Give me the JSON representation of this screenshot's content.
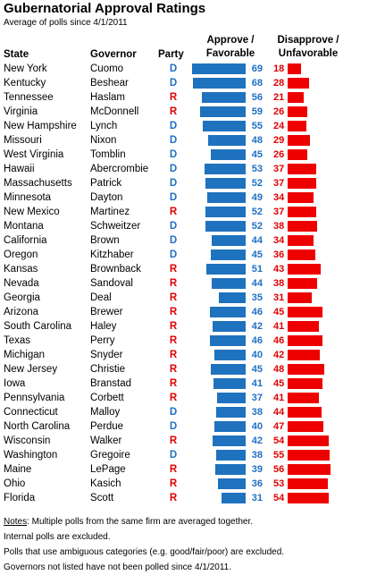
{
  "title": "Gubernatorial Approval Ratings",
  "subtitle": "Average of polls since 4/1/2011",
  "headers": {
    "state": "State",
    "governor": "Governor",
    "party": "Party",
    "approve_line1": "Approve /",
    "approve_line2": "Favorable",
    "disapprove_line1": "Disapprove /",
    "disapprove_line2": "Unfavorable"
  },
  "colors": {
    "democrat": "#1f6fc4",
    "republican": "#e00000",
    "approve_bar": "#1f72bd",
    "disapprove_bar": "#ee0000"
  },
  "chart_data": {
    "type": "bar",
    "title": "Gubernatorial Approval Ratings",
    "subtitle": "Average of polls since 4/1/2011",
    "categories": [
      "New York",
      "Kentucky",
      "Tennessee",
      "Virginia",
      "New Hampshire",
      "Missouri",
      "West Virginia",
      "Hawaii",
      "Massachusetts",
      "Minnesota",
      "New Mexico",
      "Montana",
      "California",
      "Oregon",
      "Kansas",
      "Nevada",
      "Georgia",
      "Arizona",
      "South Carolina",
      "Texas",
      "Michigan",
      "New Jersey",
      "Iowa",
      "Pennsylvania",
      "Connecticut",
      "North Carolina",
      "Wisconsin",
      "Washington",
      "Maine",
      "Ohio",
      "Florida"
    ],
    "governors": [
      "Cuomo",
      "Beshear",
      "Haslam",
      "McDonnell",
      "Lynch",
      "Nixon",
      "Tomblin",
      "Abercrombie",
      "Patrick",
      "Dayton",
      "Martinez",
      "Schweitzer",
      "Brown",
      "Kitzhaber",
      "Brownback",
      "Sandoval",
      "Deal",
      "Brewer",
      "Haley",
      "Perry",
      "Snyder",
      "Christie",
      "Branstad",
      "Corbett",
      "Malloy",
      "Perdue",
      "Walker",
      "Gregoire",
      "LePage",
      "Kasich",
      "Scott"
    ],
    "parties": [
      "D",
      "D",
      "R",
      "R",
      "D",
      "D",
      "D",
      "D",
      "D",
      "D",
      "R",
      "D",
      "D",
      "D",
      "R",
      "R",
      "R",
      "R",
      "R",
      "R",
      "R",
      "R",
      "R",
      "R",
      "D",
      "D",
      "R",
      "D",
      "R",
      "R",
      "R"
    ],
    "series": [
      {
        "name": "Approve / Favorable",
        "values": [
          69,
          68,
          56,
          59,
          55,
          48,
          45,
          53,
          52,
          49,
          52,
          52,
          44,
          45,
          51,
          44,
          35,
          46,
          42,
          46,
          40,
          45,
          41,
          37,
          38,
          40,
          42,
          38,
          39,
          36,
          31
        ]
      },
      {
        "name": "Disapprove / Unfavorable",
        "values": [
          18,
          28,
          21,
          26,
          24,
          29,
          26,
          37,
          37,
          34,
          37,
          38,
          34,
          36,
          43,
          38,
          31,
          45,
          41,
          46,
          42,
          48,
          45,
          41,
          44,
          47,
          54,
          55,
          56,
          53,
          54
        ]
      }
    ],
    "xlim": [
      0,
      69
    ],
    "legend": "column headers"
  },
  "notes": {
    "label": "Notes",
    "line1_rest": ": Multiple polls from the same firm are averaged together.",
    "line2": "Internal polls are excluded.",
    "line3": "Polls that use ambiguous categories (e.g. good/fair/poor) are excluded.",
    "line4": "Governors not listed have not been polled since 4/1/2011."
  }
}
